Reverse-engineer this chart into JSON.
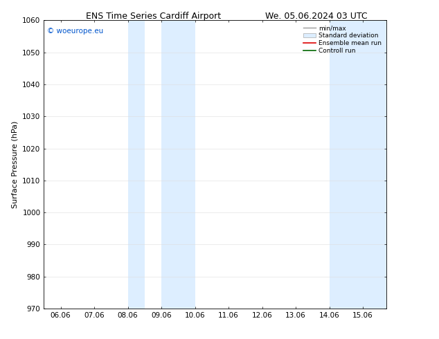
{
  "title_left": "ENS Time Series Cardiff Airport",
  "title_right": "We. 05.06.2024 03 UTC",
  "ylabel": "Surface Pressure (hPa)",
  "ylim": [
    970,
    1060
  ],
  "yticks": [
    970,
    980,
    990,
    1000,
    1010,
    1020,
    1030,
    1040,
    1050,
    1060
  ],
  "xtick_labels": [
    "06.06",
    "07.06",
    "08.06",
    "09.06",
    "10.06",
    "11.06",
    "12.06",
    "13.06",
    "14.06",
    "15.06"
  ],
  "xtick_positions": [
    0,
    1,
    2,
    3,
    4,
    5,
    6,
    7,
    8,
    9
  ],
  "xlim": [
    -0.5,
    9.7
  ],
  "shaded_bands": [
    {
      "xmin": 2.0,
      "xmax": 2.5
    },
    {
      "xmin": 3.0,
      "xmax": 4.0
    },
    {
      "xmin": 8.0,
      "xmax": 9.7
    }
  ],
  "shade_color": "#ddeeff",
  "copyright_text": "© woeurope.eu",
  "copyright_color": "#0055cc",
  "legend_labels": [
    "min/max",
    "Standard deviation",
    "Ensemble mean run",
    "Controll run"
  ],
  "legend_line_colors": [
    "#999999",
    "#bbbbbb",
    "#dd0000",
    "#006600"
  ],
  "background_color": "#ffffff",
  "grid_color": "#dddddd",
  "title_fontsize": 9,
  "axis_label_fontsize": 8,
  "tick_fontsize": 7.5
}
